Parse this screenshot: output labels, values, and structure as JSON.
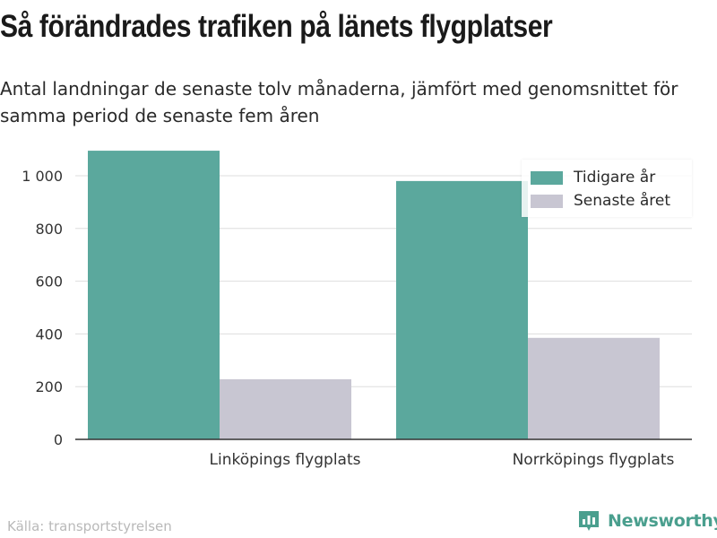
{
  "title": "Så förändrades trafiken på länets flygplatser",
  "subtitle": "Antal landningar de senaste tolv månaderna, jämfört med genomsnittet för samma period de senaste fem åren",
  "source": "Källa: transportstyrelsen",
  "brand": {
    "name": "Newsworthy",
    "icon": "bar-chart-logo-icon",
    "color": "#4a9f8e"
  },
  "chart_data": {
    "type": "bar",
    "categories": [
      "Linköpings flygplats",
      "Norrköpings flygplats"
    ],
    "series": [
      {
        "name": "Tidigare år",
        "color": "#5ba89d",
        "values": [
          1095,
          980
        ]
      },
      {
        "name": "Senaste året",
        "color": "#c8c6d2",
        "values": [
          228,
          385
        ]
      }
    ],
    "yticks": [
      0,
      200,
      400,
      600,
      800,
      1000
    ],
    "ytick_labels": [
      "0",
      "200",
      "400",
      "600",
      "800",
      "1 000"
    ],
    "ylim": [
      0,
      1100
    ],
    "grid": true,
    "legend_position": "top-right"
  }
}
